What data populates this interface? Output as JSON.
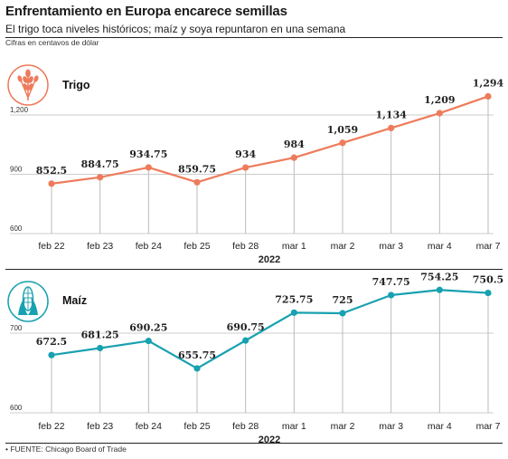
{
  "header": {
    "title": "Enfrentamiento en Europa encarece semillas",
    "subtitle": "El trigo toca niveles históricos; maíz y soya repuntaron en una semana",
    "note": "Cifras en centavos de dólar"
  },
  "footer": {
    "source": "FUENTE: Chicago Board of Trade"
  },
  "colors": {
    "trigo": "#ee7b5b",
    "maiz": "#18a1b0",
    "grid": "#bbbbbb"
  },
  "icons": {
    "trigo": "wheat-icon",
    "maiz": "corn-icon"
  },
  "chart_data": [
    {
      "type": "line",
      "title": "Trigo",
      "categories": [
        "feb 22",
        "feb 23",
        "feb 24",
        "feb 25",
        "feb 28",
        "mar 1",
        "mar 2",
        "mar 3",
        "mar 4",
        "mar 7"
      ],
      "values": [
        852.5,
        884.75,
        934.75,
        859.75,
        934,
        984,
        1059,
        1134,
        1209,
        1294
      ],
      "value_labels": [
        "852.5",
        "884.75",
        "934.75",
        "859.75",
        "934",
        "984",
        "1,059",
        "1,134",
        "1,209",
        "1,294"
      ],
      "yticks": [
        "1,200",
        "900",
        "600"
      ],
      "ytick_values": [
        1200,
        900,
        600
      ],
      "ylim": [
        600,
        1294
      ],
      "xlabel": "2022",
      "ylabel": ""
    },
    {
      "type": "line",
      "title": "Maíz",
      "categories": [
        "feb 22",
        "feb 23",
        "feb 24",
        "feb 25",
        "feb 28",
        "mar 1",
        "mar 2",
        "mar 3",
        "mar 4",
        "mar 7"
      ],
      "values": [
        672.5,
        681.25,
        690.25,
        655.75,
        690.75,
        725.75,
        725,
        747.75,
        754.25,
        750.5
      ],
      "value_labels": [
        "672.5",
        "681.25",
        "690.25",
        "655.75",
        "690.75",
        "725.75",
        "725",
        "747.75",
        "754.25",
        "750.5"
      ],
      "yticks": [
        "700",
        "600"
      ],
      "ytick_values": [
        700,
        600
      ],
      "ylim": [
        600,
        754.25
      ],
      "xlabel": "2022",
      "ylabel": ""
    }
  ]
}
